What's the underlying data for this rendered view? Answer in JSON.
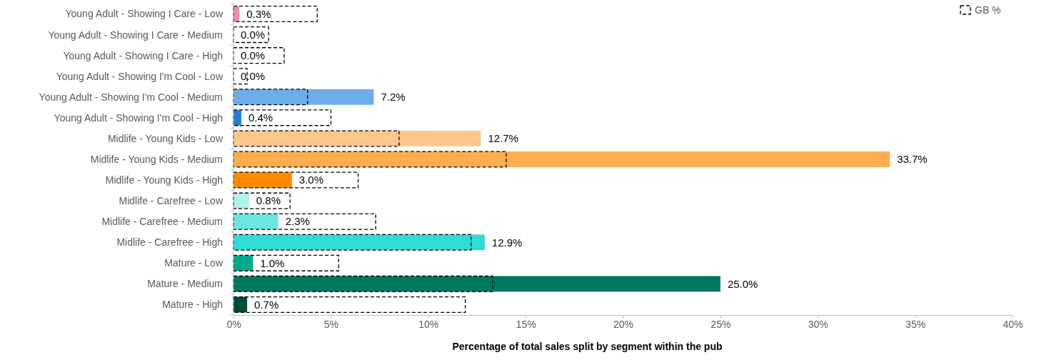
{
  "chart_data": {
    "type": "bar",
    "orientation": "horizontal",
    "xlabel": "Percentage of total sales split by segment within the pub",
    "categories": [
      "Young Adult - Showing I Care - Low",
      "Young Adult - Showing I Care - Medium",
      "Young Adult - Showing I Care - High",
      "Young Adult - Showing I'm Cool - Low",
      "Young Adult - Showing I'm Cool - Medium",
      "Young Adult - Showing I'm Cool - High",
      "Midlife - Young Kids - Low",
      "Midlife - Young Kids - Medium",
      "Midlife - Young Kids - High",
      "Midlife - Carefree - Low",
      "Midlife - Carefree - Medium",
      "Midlife - Carefree - High",
      "Mature - Low",
      "Mature - Medium",
      "Mature - High"
    ],
    "series": [
      {
        "colors": [
          "#f08cb0",
          "#f4a6c6",
          "#e05c94",
          "#a8d0f5",
          "#6caeea",
          "#1f7ed8",
          "#ffc78a",
          "#ffad4f",
          "#ff8a00",
          "#b3f0f0",
          "#6ee6e0",
          "#2dddd6",
          "#00a88c",
          "#00775f",
          "#004b3a"
        ],
        "values": [
          0.3,
          0.0,
          0.0,
          0.0,
          7.2,
          0.4,
          12.7,
          33.7,
          3.0,
          0.8,
          2.3,
          12.9,
          1.0,
          25.0,
          0.7
        ],
        "value_labels": [
          "0.3%",
          "0.0%",
          "0.0%",
          "0.0%",
          "7.2%",
          "0.4%",
          "12.7%",
          "33.7%",
          "3.0%",
          "0.8%",
          "2.3%",
          "12.9%",
          "1.0%",
          "25.0%",
          "0.7%"
        ]
      },
      {
        "name": "GB %",
        "color": "#000000",
        "line_style": "dashed",
        "values": [
          4.3,
          1.8,
          2.6,
          0.7,
          3.8,
          5.0,
          8.5,
          14.0,
          6.4,
          2.9,
          7.3,
          12.2,
          5.4,
          13.3,
          11.9
        ]
      }
    ],
    "xlim": [
      0,
      40
    ],
    "xticks": [
      {
        "value": 0,
        "label": "0%"
      },
      {
        "value": 5,
        "label": "5%"
      },
      {
        "value": 10,
        "label": "10%"
      },
      {
        "value": 15,
        "label": "15%"
      },
      {
        "value": 20,
        "label": "20%"
      },
      {
        "value": 25,
        "label": "25%"
      },
      {
        "value": 30,
        "label": "30%"
      },
      {
        "value": 35,
        "label": "35%"
      },
      {
        "value": 40,
        "label": "40%"
      }
    ],
    "legend": "top right"
  }
}
